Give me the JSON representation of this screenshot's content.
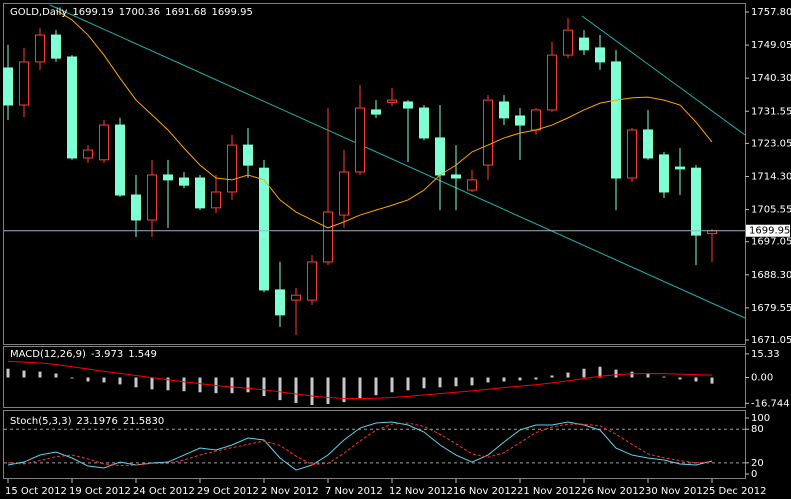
{
  "chart_data": [
    {
      "type": "candlestick",
      "title": "GOLD,Daily",
      "categories": [
        "15 Oct 2012",
        null,
        null,
        null,
        "19 Oct 2012",
        null,
        null,
        null,
        "24 Oct 2012",
        null,
        null,
        null,
        "29 Oct 2012",
        null,
        null,
        null,
        "2 Nov 2012",
        null,
        null,
        null,
        "7 Nov 2012",
        null,
        null,
        null,
        "12 Nov 2012",
        null,
        null,
        null,
        "16 Nov 2012",
        null,
        null,
        null,
        "21 Nov 2012",
        null,
        null,
        null,
        "26 Nov 2012",
        null,
        null,
        null,
        "30 Nov 2012",
        null,
        null,
        null,
        "5 Dec 2012"
      ],
      "open": [
        1743.0,
        1733.2,
        1744.6,
        1751.7,
        1745.9,
        1719.2,
        1718.7,
        1727.9,
        1709.4,
        1702.8,
        1714.7,
        1713.9,
        1713.9,
        1706.0,
        1710.2,
        1722.6,
        1716.5,
        1684.3,
        1681.6,
        1681.6,
        1691.7,
        1704.1,
        1715.5,
        1731.9,
        1733.9,
        1734.0,
        1732.4,
        1724.5,
        1714.7,
        1710.7,
        1717.3,
        1734.0,
        1730.3,
        1726.6,
        1731.9,
        1746.4,
        1750.9,
        1748.3,
        1744.6,
        1713.9,
        1726.6,
        1720.0,
        1716.8,
        1716.5,
        1699.19
      ],
      "high": [
        1749.1,
        1748.3,
        1753.6,
        1753.0,
        1746.4,
        1722.6,
        1729.2,
        1729.8,
        1714.7,
        1718.7,
        1718.7,
        1715.5,
        1714.7,
        1714.7,
        1725.3,
        1727.1,
        1718.7,
        1691.7,
        1684.8,
        1693.5,
        1732.4,
        1721.3,
        1738.5,
        1734.5,
        1737.7,
        1734.5,
        1733.2,
        1733.2,
        1722.6,
        1716.0,
        1735.8,
        1735.8,
        1732.4,
        1732.4,
        1749.9,
        1756.2,
        1753.0,
        1751.7,
        1747.7,
        1727.1,
        1731.9,
        1720.8,
        1721.8,
        1717.3,
        1700.36
      ],
      "low": [
        1729.2,
        1730.0,
        1742.5,
        1744.6,
        1718.7,
        1717.9,
        1717.9,
        1708.9,
        1698.3,
        1698.3,
        1700.7,
        1711.2,
        1705.4,
        1704.6,
        1708.1,
        1713.9,
        1683.7,
        1674.5,
        1672.4,
        1680.3,
        1690.9,
        1700.7,
        1714.7,
        1729.8,
        1732.9,
        1718.1,
        1723.9,
        1705.4,
        1705.4,
        1710.2,
        1713.4,
        1727.9,
        1718.7,
        1725.3,
        1731.4,
        1745.6,
        1746.4,
        1742.5,
        1705.4,
        1712.8,
        1718.7,
        1708.6,
        1709.4,
        1690.9,
        1691.68
      ],
      "close": [
        1733.2,
        1744.6,
        1751.7,
        1745.6,
        1719.2,
        1721.3,
        1727.9,
        1709.4,
        1702.8,
        1714.7,
        1713.4,
        1712.0,
        1706.0,
        1710.2,
        1722.6,
        1717.3,
        1684.3,
        1677.7,
        1682.9,
        1691.7,
        1704.9,
        1715.5,
        1732.4,
        1730.8,
        1734.5,
        1732.4,
        1724.5,
        1714.7,
        1713.9,
        1713.4,
        1734.5,
        1729.8,
        1727.9,
        1731.9,
        1746.4,
        1753.0,
        1747.8,
        1744.6,
        1713.9,
        1726.6,
        1719.2,
        1710.2,
        1716.3,
        1698.8,
        1699.95
      ],
      "up_color": "#ff3b2f",
      "down_color": "#7fffd4",
      "ma": {
        "color": "#ffa500",
        "values": [
          null,
          null,
          null,
          1758.3,
          1755.7,
          1751.7,
          1746.4,
          1740.3,
          1734.5,
          1730.6,
          1726.6,
          1721.8,
          1717.3,
          1713.9,
          1713.4,
          1714.7,
          1713.4,
          1708.1,
          1704.9,
          1702.8,
          1700.7,
          1702.3,
          1704.1,
          1705.4,
          1706.7,
          1708.1,
          1710.7,
          1714.7,
          1717.3,
          1720.8,
          1722.6,
          1724.5,
          1725.8,
          1726.6,
          1727.9,
          1729.8,
          1731.9,
          1733.7,
          1734.5,
          1735.1,
          1735.3,
          1734.5,
          1733.2,
          1728.7,
          1723.4
        ]
      },
      "ylim": [
        1670.26,
        1759.65
      ],
      "yticks": [
        {
          "value": 1757.8,
          "label": "1757.80"
        },
        1749.05,
        {
          "value": 1740.3,
          "label": "1740.30"
        },
        1731.55,
        1723.05,
        {
          "value": 1714.3,
          "label": "1714.30"
        },
        1705.55,
        1697.05,
        {
          "value": 1688.3,
          "label": "1688.30"
        },
        1679.55,
        1671.05
      ]
    },
    {
      "type": "bar",
      "title": "MACD(12,26,9)",
      "histogram": {
        "color": "#c8c8c8",
        "values": [
          5.7,
          4.5,
          3.8,
          2.6,
          -0.6,
          -2.6,
          -3.2,
          -4.5,
          -6.4,
          -7.7,
          -8.3,
          -8.9,
          -9.6,
          -10.2,
          -10.2,
          -9.6,
          -12.1,
          -14.7,
          -16.6,
          -17.9,
          -17.2,
          -16.0,
          -13.4,
          -11.5,
          -9.6,
          -8.3,
          -7.0,
          -6.4,
          -5.7,
          -5.1,
          -3.2,
          -2.6,
          -1.9,
          -1.3,
          1.3,
          3.2,
          5.7,
          7.0,
          5.1,
          3.8,
          2.6,
          0.6,
          -1.3,
          -2.6,
          -3.973
        ]
      },
      "signal": {
        "color": "#ff0000",
        "values": [
          10.5,
          10.0,
          9.4,
          8.4,
          7.0,
          5.5,
          4.0,
          2.7,
          1.3,
          -0.1,
          -1.5,
          -2.8,
          -4.0,
          -5.2,
          -6.2,
          -7.0,
          -8.0,
          -9.3,
          -10.7,
          -12.0,
          -13.0,
          -13.6,
          -13.7,
          -13.5,
          -13.0,
          -12.3,
          -11.4,
          -10.5,
          -9.6,
          -8.7,
          -7.6,
          -6.6,
          -5.6,
          -4.7,
          -3.5,
          -2.2,
          -0.7,
          0.8,
          1.8,
          2.4,
          2.6,
          2.5,
          2.2,
          1.9,
          1.549
        ]
      },
      "ylim": [
        -19.16,
        19.8
      ],
      "yticks": [
        15.33,
        {
          "value": 0,
          "label": "0.00"
        },
        -16.744
      ]
    },
    {
      "type": "line",
      "title": "Stoch(5,3,3)",
      "series": [
        {
          "color": "#5fd3e8",
          "values": [
            16.1,
            21.4,
            33.9,
            39.3,
            28.6,
            14.3,
            10.7,
            21.4,
            16.1,
            19.6,
            21.4,
            33.9,
            46.4,
            42.9,
            51.8,
            64.3,
            60.7,
            28.6,
            7.1,
            16.1,
            33.9,
            60.7,
            82.1,
            91.1,
            92.9,
            87.5,
            75.0,
            51.8,
            33.9,
            21.4,
            33.9,
            57.1,
            78.6,
            87.5,
            87.5,
            92.9,
            87.5,
            78.6,
            46.4,
            33.9,
            28.6,
            25.0,
            17.9,
            16.1,
            23.1976
          ]
        },
        {
          "color": "#ff3030",
          "line_style": "dashed",
          "values": [
            20,
            18,
            24,
            31,
            34,
            27,
            18,
            15,
            16,
            19,
            19,
            25,
            34,
            41,
            47,
            53,
            59,
            51,
            32,
            17,
            19,
            37,
            59,
            78,
            89,
            91,
            85,
            71,
            54,
            36,
            30,
            38,
            56,
            74,
            84,
            89,
            89,
            86,
            71,
            53,
            36,
            29,
            24,
            20,
            21.583
          ],
          "value_labels": [
            null,
            null,
            null,
            null,
            null,
            null,
            null,
            null,
            null,
            null,
            null,
            null,
            null,
            null,
            null,
            null,
            null,
            null,
            null,
            null,
            null,
            null,
            null,
            null,
            null,
            null,
            null,
            null,
            null,
            null,
            null,
            null,
            null,
            null,
            null,
            null,
            null,
            null,
            null,
            null,
            null,
            null,
            null,
            null,
            "21.5830"
          ]
        }
      ],
      "levels": [
        80,
        20
      ],
      "ylim": [
        -7.1,
        112.5
      ],
      "yticks": [
        100,
        80,
        20,
        0
      ]
    }
  ]
}
